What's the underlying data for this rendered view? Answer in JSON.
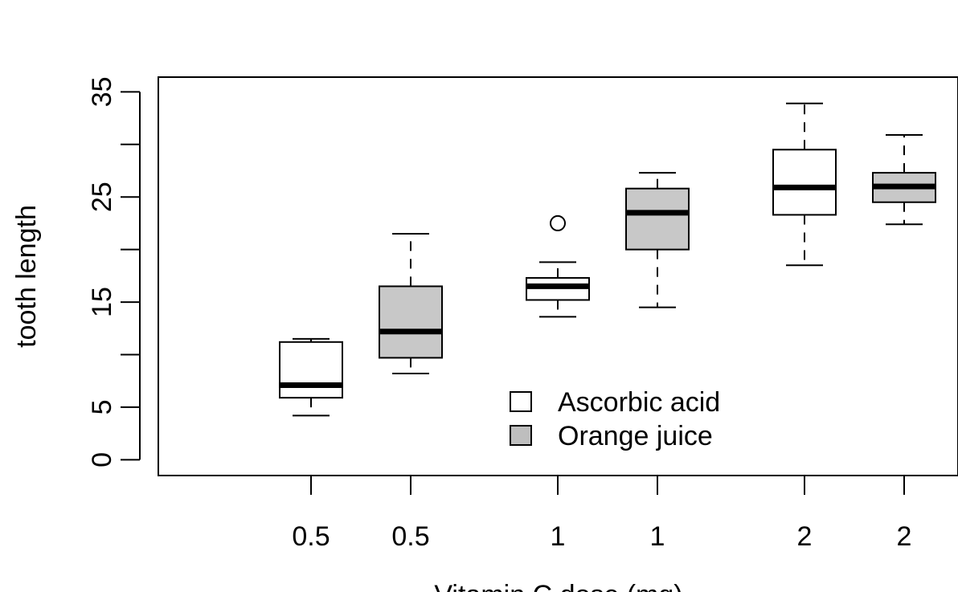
{
  "chart_data": {
    "type": "boxplot",
    "title": "",
    "xlabel": "Vitamin C dose (mg)",
    "ylabel": "tooth length",
    "ylim": [
      -1.5,
      36.4
    ],
    "y_ticks": [
      0,
      5,
      10,
      15,
      20,
      25,
      30,
      35
    ],
    "y_tick_labels": [
      "0",
      "5",
      "",
      "15",
      "",
      "25",
      "",
      "35"
    ],
    "x_tick_labels": [
      "0.5",
      "0.5",
      "1",
      "1",
      "2",
      "2"
    ],
    "grid": false,
    "legend_position": "bottom-center",
    "series": [
      {
        "name": "Ascorbic acid",
        "color": "#ffffff",
        "boxes": [
          {
            "x_label": "0.5",
            "whisker_low": 4.2,
            "q1": 5.9,
            "median": 7.1,
            "q3": 11.2,
            "whisker_high": 11.5,
            "outliers": []
          },
          {
            "x_label": "1",
            "whisker_low": 13.6,
            "q1": 15.2,
            "median": 16.5,
            "q3": 17.3,
            "whisker_high": 18.8,
            "outliers": [
              22.5
            ]
          },
          {
            "x_label": "2",
            "whisker_low": 18.5,
            "q1": 23.3,
            "median": 25.9,
            "q3": 29.5,
            "whisker_high": 33.9,
            "outliers": []
          }
        ]
      },
      {
        "name": "Orange juice",
        "color": "#c8c8c8",
        "boxes": [
          {
            "x_label": "0.5",
            "whisker_low": 8.2,
            "q1": 9.7,
            "median": 12.2,
            "q3": 16.5,
            "whisker_high": 21.5,
            "outliers": []
          },
          {
            "x_label": "1",
            "whisker_low": 14.5,
            "q1": 20.0,
            "median": 23.5,
            "q3": 25.8,
            "whisker_high": 27.3,
            "outliers": []
          },
          {
            "x_label": "2",
            "whisker_low": 22.4,
            "q1": 24.5,
            "median": 26.0,
            "q3": 27.3,
            "whisker_high": 30.9,
            "outliers": []
          }
        ]
      }
    ]
  }
}
